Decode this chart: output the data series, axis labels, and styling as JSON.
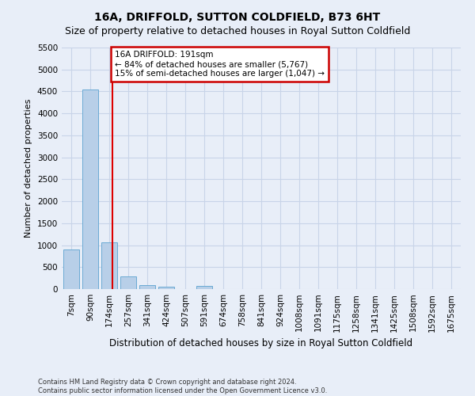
{
  "title": "16A, DRIFFOLD, SUTTON COLDFIELD, B73 6HT",
  "subtitle": "Size of property relative to detached houses in Royal Sutton Coldfield",
  "xlabel": "Distribution of detached houses by size in Royal Sutton Coldfield",
  "ylabel": "Number of detached properties",
  "footnote1": "Contains HM Land Registry data © Crown copyright and database right 2024.",
  "footnote2": "Contains public sector information licensed under the Open Government Licence v3.0.",
  "bar_labels": [
    "7sqm",
    "90sqm",
    "174sqm",
    "257sqm",
    "341sqm",
    "424sqm",
    "507sqm",
    "591sqm",
    "674sqm",
    "758sqm",
    "841sqm",
    "924sqm",
    "1008sqm",
    "1091sqm",
    "1175sqm",
    "1258sqm",
    "1341sqm",
    "1425sqm",
    "1508sqm",
    "1592sqm",
    "1675sqm"
  ],
  "bar_values": [
    900,
    4550,
    1060,
    290,
    85,
    55,
    0,
    80,
    0,
    0,
    0,
    0,
    0,
    0,
    0,
    0,
    0,
    0,
    0,
    0,
    0
  ],
  "bar_color": "#b8cfe8",
  "bar_edge_color": "#6aaad4",
  "grid_color": "#c8d4e8",
  "background_color": "#e8eef8",
  "plot_bg_color": "#e8eef8",
  "red_line_x": 2.18,
  "annotation_text": "16A DRIFFOLD: 191sqm\n← 84% of detached houses are smaller (5,767)\n15% of semi-detached houses are larger (1,047) →",
  "annotation_box_color": "#ffffff",
  "annotation_box_edge": "#cc0000",
  "ylim": [
    0,
    5500
  ],
  "yticks": [
    0,
    500,
    1000,
    1500,
    2000,
    2500,
    3000,
    3500,
    4000,
    4500,
    5000,
    5500
  ],
  "title_fontsize": 10,
  "subtitle_fontsize": 9,
  "ylabel_fontsize": 8,
  "xlabel_fontsize": 8.5,
  "tick_fontsize": 7.5,
  "annot_fontsize": 7.5
}
